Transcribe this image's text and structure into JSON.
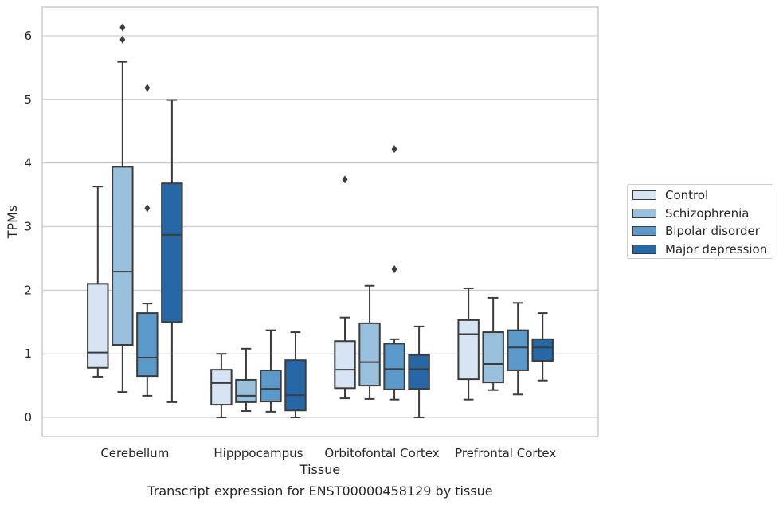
{
  "chart_data": {
    "type": "box",
    "title": "Transcript expression for ENST00000458129 by tissue",
    "xlabel": "Tissue",
    "ylabel": "TPMs",
    "ylim": [
      -0.3,
      6.45
    ],
    "yticks": [
      0,
      1,
      2,
      3,
      4,
      5,
      6
    ],
    "grid": true,
    "legend_position": "right",
    "categories": [
      "Cerebellum",
      "Hipppocampus",
      "Orbitofontal Cortex",
      "Prefrontal Cortex"
    ],
    "series": [
      {
        "name": "Control",
        "color": "#d6e4f3",
        "boxes": [
          {
            "whislo": 0.64,
            "q1": 0.78,
            "med": 1.02,
            "q3": 2.1,
            "whishi": 3.63,
            "fliers": []
          },
          {
            "whislo": 0.0,
            "q1": 0.2,
            "med": 0.54,
            "q3": 0.75,
            "whishi": 1.0,
            "fliers": []
          },
          {
            "whislo": 0.3,
            "q1": 0.46,
            "med": 0.75,
            "q3": 1.2,
            "whishi": 1.57,
            "fliers": [
              3.74
            ]
          },
          {
            "whislo": 0.28,
            "q1": 0.6,
            "med": 1.31,
            "q3": 1.53,
            "whishi": 2.03,
            "fliers": []
          }
        ]
      },
      {
        "name": "Schizophrenia",
        "color": "#99c0dd",
        "boxes": [
          {
            "whislo": 0.4,
            "q1": 1.14,
            "med": 2.29,
            "q3": 3.94,
            "whishi": 5.59,
            "fliers": [
              5.94,
              6.13
            ]
          },
          {
            "whislo": 0.1,
            "q1": 0.24,
            "med": 0.34,
            "q3": 0.59,
            "whishi": 1.08,
            "fliers": []
          },
          {
            "whislo": 0.29,
            "q1": 0.5,
            "med": 0.87,
            "q3": 1.48,
            "whishi": 2.07,
            "fliers": []
          },
          {
            "whislo": 0.43,
            "q1": 0.55,
            "med": 0.84,
            "q3": 1.34,
            "whishi": 1.88,
            "fliers": []
          }
        ]
      },
      {
        "name": "Bipolar disorder",
        "color": "#5a99c9",
        "boxes": [
          {
            "whislo": 0.34,
            "q1": 0.65,
            "med": 0.94,
            "q3": 1.64,
            "whishi": 1.79,
            "fliers": [
              3.29,
              5.18
            ]
          },
          {
            "whislo": 0.09,
            "q1": 0.25,
            "med": 0.45,
            "q3": 0.74,
            "whishi": 1.37,
            "fliers": []
          },
          {
            "whislo": 0.28,
            "q1": 0.44,
            "med": 0.76,
            "q3": 1.16,
            "whishi": 1.23,
            "fliers": [
              2.33,
              4.22
            ]
          },
          {
            "whislo": 0.36,
            "q1": 0.74,
            "med": 1.1,
            "q3": 1.37,
            "whishi": 1.8,
            "fliers": []
          }
        ]
      },
      {
        "name": "Major depression",
        "color": "#2867a6",
        "boxes": [
          {
            "whislo": 0.24,
            "q1": 1.5,
            "med": 2.87,
            "q3": 3.68,
            "whishi": 4.99,
            "fliers": []
          },
          {
            "whislo": 0.0,
            "q1": 0.11,
            "med": 0.35,
            "q3": 0.9,
            "whishi": 1.34,
            "fliers": []
          },
          {
            "whislo": 0.0,
            "q1": 0.45,
            "med": 0.76,
            "q3": 0.98,
            "whishi": 1.43,
            "fliers": []
          },
          {
            "whislo": 0.58,
            "q1": 0.89,
            "med": 1.1,
            "q3": 1.23,
            "whishi": 1.64,
            "fliers": []
          }
        ]
      }
    ]
  }
}
